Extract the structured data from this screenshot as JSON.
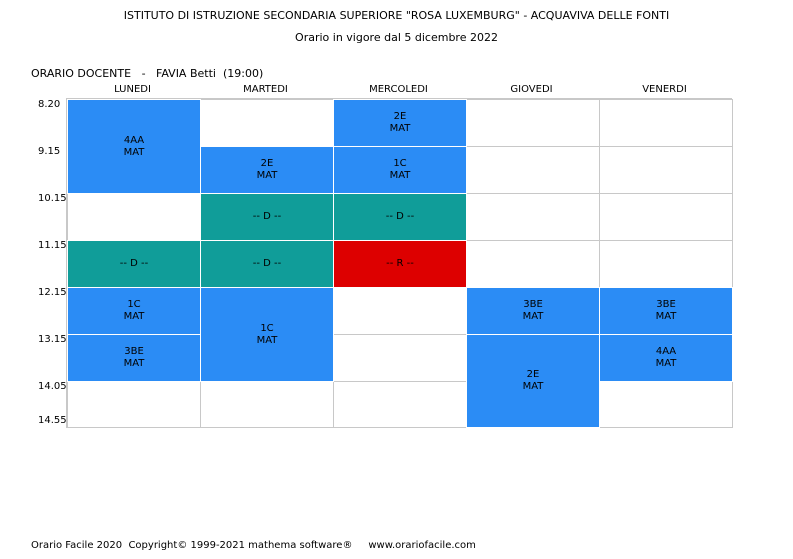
{
  "header": {
    "school": "ISTITUTO DI ISTRUZIONE SECONDARIA SUPERIORE \"ROSA LUXEMBURG\" - ACQUAVIVA DELLE FONTI",
    "validity": "Orario in vigore dal 5 dicembre 2022"
  },
  "teacher": {
    "label": "ORARIO DOCENTE   -   FAVIA Betti  (19:00)"
  },
  "days": [
    "LUNEDI",
    "MARTEDI",
    "MERCOLEDI",
    "GIOVEDI",
    "VENERDI"
  ],
  "times": [
    "8.20",
    "9.15",
    "10.15",
    "11.15",
    "12.15",
    "13.15",
    "14.05",
    "14.55"
  ],
  "colors": {
    "lesson": "#2b8cf5",
    "availability": "#109d99",
    "reserve": "#dd0000",
    "grid": "#c8c8c8"
  },
  "lessons": [
    {
      "day": 0,
      "start": 0,
      "span": 2,
      "class": "4AA",
      "subject": "MAT",
      "type": "lesson"
    },
    {
      "day": 0,
      "start": 3,
      "span": 1,
      "class": "-- D --",
      "subject": "",
      "type": "availability"
    },
    {
      "day": 0,
      "start": 4,
      "span": 1,
      "class": "1C",
      "subject": "MAT",
      "type": "lesson"
    },
    {
      "day": 0,
      "start": 5,
      "span": 1,
      "class": "3BE",
      "subject": "MAT",
      "type": "lesson"
    },
    {
      "day": 1,
      "start": 1,
      "span": 1,
      "class": "2E",
      "subject": "MAT",
      "type": "lesson"
    },
    {
      "day": 1,
      "start": 2,
      "span": 1,
      "class": "-- D --",
      "subject": "",
      "type": "availability"
    },
    {
      "day": 1,
      "start": 3,
      "span": 1,
      "class": "-- D --",
      "subject": "",
      "type": "availability"
    },
    {
      "day": 1,
      "start": 4,
      "span": 2,
      "class": "1C",
      "subject": "MAT",
      "type": "lesson"
    },
    {
      "day": 2,
      "start": 0,
      "span": 1,
      "class": "2E",
      "subject": "MAT",
      "type": "lesson"
    },
    {
      "day": 2,
      "start": 1,
      "span": 1,
      "class": "1C",
      "subject": "MAT",
      "type": "lesson"
    },
    {
      "day": 2,
      "start": 2,
      "span": 1,
      "class": "-- D --",
      "subject": "",
      "type": "availability"
    },
    {
      "day": 2,
      "start": 3,
      "span": 1,
      "class": "-- R --",
      "subject": "",
      "type": "reserve"
    },
    {
      "day": 3,
      "start": 4,
      "span": 1,
      "class": "3BE",
      "subject": "MAT",
      "type": "lesson"
    },
    {
      "day": 3,
      "start": 5,
      "span": 2,
      "class": "2E",
      "subject": "MAT",
      "type": "lesson"
    },
    {
      "day": 4,
      "start": 4,
      "span": 1,
      "class": "3BE",
      "subject": "MAT",
      "type": "lesson"
    },
    {
      "day": 4,
      "start": 5,
      "span": 1,
      "class": "4AA",
      "subject": "MAT",
      "type": "lesson"
    }
  ],
  "footer": {
    "text": "Orario Facile 2020  Copyright© 1999-2021 mathema software®     www.orariofacile.com"
  }
}
